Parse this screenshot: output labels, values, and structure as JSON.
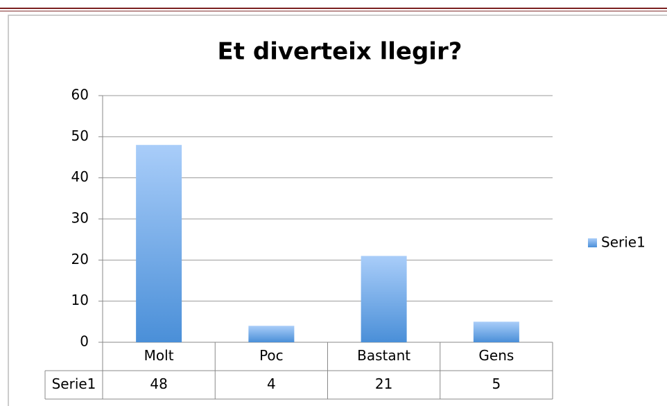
{
  "chart_data": {
    "type": "bar",
    "title": "Et diverteix llegir?",
    "categories": [
      "Molt",
      "Poc",
      "Bastant",
      "Gens"
    ],
    "series": [
      {
        "name": "Serie1",
        "color": "#5b9be0",
        "values": [
          48,
          4,
          21,
          5
        ]
      }
    ],
    "ylim": [
      0,
      60
    ],
    "yticks": [
      0,
      10,
      20,
      30,
      40,
      50,
      60
    ],
    "grid": true,
    "legend": "right",
    "data_table": true
  }
}
